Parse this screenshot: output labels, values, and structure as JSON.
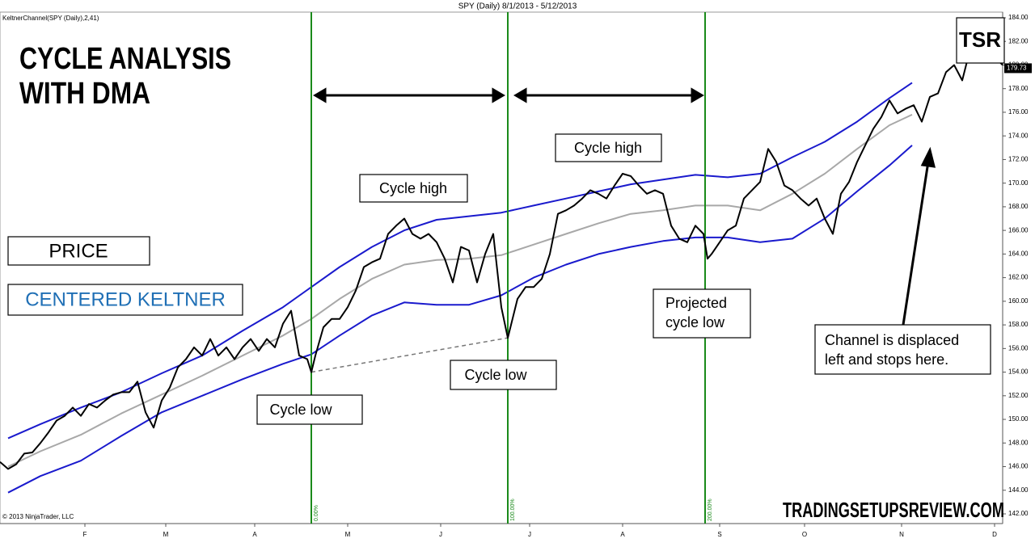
{
  "chart_data": {
    "type": "line",
    "title": "SPY (Daily)  8/1/2013 - 5/12/2013",
    "indicator_label": "KeltnerChannel(SPY (Daily),2,41)",
    "copyright": "© 2013 NinjaTrader, LLC",
    "heading": [
      "CYCLE ANALYSIS",
      "WITH DMA"
    ],
    "logo": "TSR",
    "watermark": "TRADINGSETUPSREVIEW.COM",
    "grid": false,
    "xlim": [
      0,
      248
    ],
    "ylim": [
      142,
      184
    ],
    "xticks": [
      {
        "value": 21,
        "label": "F"
      },
      {
        "value": 41,
        "label": "M"
      },
      {
        "value": 63,
        "label": "A"
      },
      {
        "value": 86,
        "label": "M"
      },
      {
        "value": 109,
        "label": "J"
      },
      {
        "value": 131,
        "label": "J"
      },
      {
        "value": 154,
        "label": "A"
      },
      {
        "value": 178,
        "label": "S"
      },
      {
        "value": 199,
        "label": "O"
      },
      {
        "value": 223,
        "label": "N"
      },
      {
        "value": 246,
        "label": "D"
      }
    ],
    "yticks": [
      {
        "value": 142,
        "label": "142.00"
      },
      {
        "value": 144,
        "label": "144.00"
      },
      {
        "value": 146,
        "label": "146.00"
      },
      {
        "value": 148,
        "label": "148.00"
      },
      {
        "value": 150,
        "label": "150.00"
      },
      {
        "value": 152,
        "label": "152.00"
      },
      {
        "value": 154,
        "label": "154.00"
      },
      {
        "value": 156,
        "label": "156.00"
      },
      {
        "value": 158,
        "label": "158.00"
      },
      {
        "value": 160,
        "label": "160.00"
      },
      {
        "value": 162,
        "label": "162.00"
      },
      {
        "value": 164,
        "label": "164.00"
      },
      {
        "value": 166,
        "label": "166.00"
      },
      {
        "value": 168,
        "label": "168.00"
      },
      {
        "value": 170,
        "label": "170.00"
      },
      {
        "value": 172,
        "label": "172.00"
      },
      {
        "value": 174,
        "label": "174.00"
      },
      {
        "value": 176,
        "label": "176.00"
      },
      {
        "value": 178,
        "label": "178.00"
      },
      {
        "value": 180,
        "label": "180.00"
      },
      {
        "value": 182,
        "label": "182.00"
      },
      {
        "value": 184,
        "label": "184.00"
      }
    ],
    "last_price": {
      "value": 179.73,
      "label": "179.73"
    },
    "series": [
      {
        "name": "PRICE",
        "color": "#000000",
        "x": [
          0,
          2,
          4,
          6,
          8,
          10,
          12,
          14,
          16,
          18,
          20,
          22,
          24,
          26,
          28,
          30,
          32,
          34,
          36,
          38,
          40,
          42,
          44,
          46,
          48,
          50,
          52,
          54,
          56,
          58,
          60,
          62,
          64,
          66,
          68,
          70,
          72,
          74,
          76,
          77,
          78,
          80,
          82,
          84,
          86,
          88,
          90,
          92,
          94,
          96,
          98,
          100,
          102,
          104,
          106,
          108,
          110,
          112,
          114,
          116,
          118,
          120,
          122,
          124,
          125.6,
          128,
          130,
          132,
          134,
          136,
          138,
          140,
          142,
          144,
          146,
          148,
          150,
          152,
          154,
          156,
          158,
          160,
          162,
          164,
          166,
          168,
          170,
          172,
          174,
          175,
          176,
          178,
          180,
          182,
          184,
          186,
          188,
          190,
          192,
          194,
          196,
          198,
          200,
          202,
          204,
          206,
          208,
          210,
          212,
          214,
          216,
          218,
          220,
          222,
          224,
          226,
          228,
          230,
          232,
          234,
          236,
          238,
          240,
          242,
          244,
          248
        ],
        "values": [
          146.4,
          145.8,
          146.2,
          147.1,
          147.2,
          148.0,
          148.9,
          149.9,
          150.3,
          151.0,
          150.3,
          151.3,
          151.0,
          151.6,
          152.1,
          152.3,
          152.3,
          153.2,
          150.6,
          149.3,
          151.6,
          152.7,
          154.4,
          155.1,
          156.1,
          155.4,
          156.8,
          155.4,
          156.1,
          155.1,
          156.1,
          156.8,
          155.8,
          156.8,
          156.1,
          158.1,
          159.2,
          155.4,
          155.1,
          154.0,
          155.4,
          157.8,
          158.5,
          158.5,
          159.5,
          160.9,
          162.9,
          163.3,
          163.6,
          165.7,
          166.4,
          167.0,
          165.7,
          165.3,
          165.7,
          165.0,
          163.6,
          161.6,
          164.6,
          164.3,
          161.6,
          164.0,
          165.7,
          159.5,
          156.9,
          160.2,
          161.2,
          161.2,
          161.9,
          164.0,
          167.4,
          167.7,
          168.1,
          168.7,
          169.4,
          169.1,
          168.7,
          169.8,
          170.8,
          170.6,
          169.8,
          169.1,
          169.4,
          169.1,
          166.4,
          165.3,
          165.0,
          166.4,
          165.7,
          163.6,
          164.0,
          165.0,
          166.0,
          166.4,
          168.7,
          169.4,
          170.1,
          172.9,
          171.8,
          169.8,
          169.4,
          168.7,
          168.1,
          168.7,
          167.0,
          165.7,
          169.1,
          170.1,
          171.8,
          173.2,
          174.6,
          175.6,
          177.0,
          175.9,
          176.3,
          176.6,
          175.2,
          177.3,
          177.6,
          179.4,
          180.0,
          178.7,
          181.4,
          182.4,
          181.4,
          180.0
        ]
      }
    ],
    "keltner": {
      "name": "CENTERED KELTNER",
      "color": "#1a1acd",
      "middle_color": "#a8a8a8",
      "x": [
        2,
        10,
        20,
        30,
        40,
        50,
        60,
        70,
        77,
        84,
        92,
        100,
        108,
        116,
        124,
        132,
        140,
        148,
        156,
        164,
        172,
        180,
        188,
        196,
        204,
        212,
        220,
        225.6
      ],
      "upper": [
        148.4,
        149.6,
        151.0,
        152.3,
        153.9,
        155.4,
        157.5,
        159.5,
        161.2,
        162.9,
        164.6,
        166.0,
        166.9,
        167.2,
        167.5,
        168.1,
        168.7,
        169.3,
        169.9,
        170.3,
        170.7,
        170.5,
        170.8,
        172.2,
        173.5,
        175.2,
        177.2,
        178.5
      ],
      "middle": [
        146.0,
        147.3,
        148.7,
        150.5,
        152.1,
        153.7,
        155.4,
        157.1,
        158.5,
        160.2,
        161.9,
        163.1,
        163.5,
        163.6,
        163.9,
        164.8,
        165.7,
        166.6,
        167.4,
        167.7,
        168.1,
        168.1,
        167.7,
        169.1,
        170.8,
        172.9,
        174.9,
        175.8
      ],
      "lower": [
        143.8,
        145.2,
        146.5,
        148.6,
        150.6,
        152.0,
        153.4,
        154.7,
        155.5,
        157.1,
        158.8,
        159.9,
        159.7,
        159.7,
        160.5,
        162.0,
        163.1,
        164.0,
        164.6,
        165.1,
        165.4,
        165.4,
        165.0,
        165.3,
        167.0,
        169.3,
        171.5,
        173.2
      ]
    },
    "cycle_lines": [
      {
        "x": 77,
        "label": "0.00%"
      },
      {
        "x": 125.6,
        "label": "100.00%"
      },
      {
        "x": 174.4,
        "label": "200.00%"
      }
    ],
    "annotations": [
      {
        "lines": [
          "Cycle high"
        ]
      },
      {
        "lines": [
          "Cycle high"
        ]
      },
      {
        "lines": [
          "Cycle low"
        ]
      },
      {
        "lines": [
          "Cycle low"
        ]
      },
      {
        "lines": [
          "Projected",
          "cycle low"
        ]
      },
      {
        "lines": [
          "Channel is displaced",
          "left and stops here."
        ]
      }
    ]
  }
}
